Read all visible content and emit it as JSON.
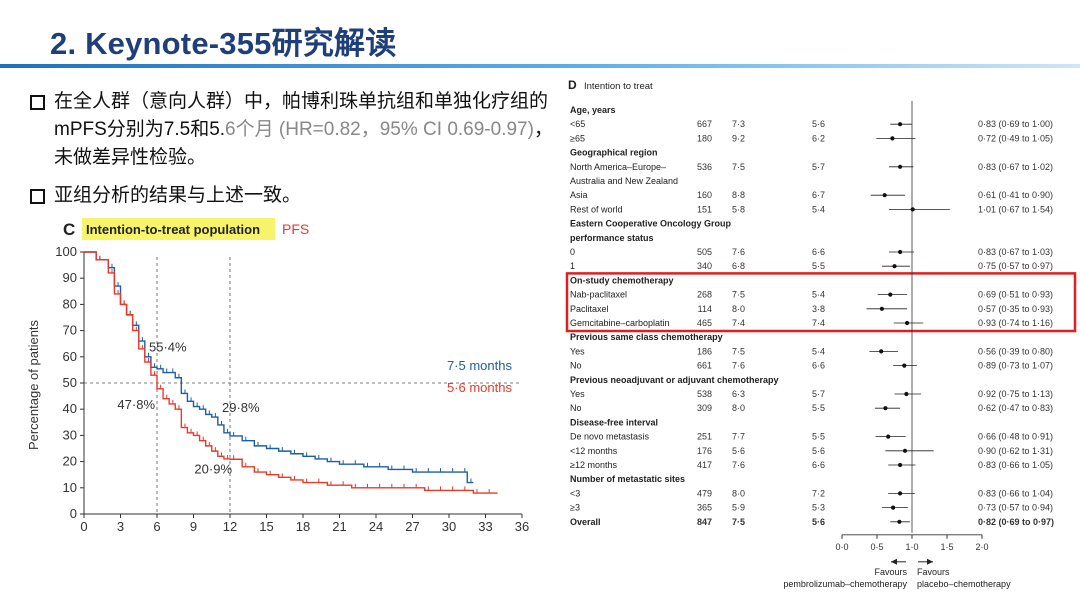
{
  "header": {
    "title": "2. Keynote-355研究解读"
  },
  "bullets": {
    "b1_black": "在全人群（意向人群）中，帕博利珠单抗组和单独化疗组的mPFS分别为7.5和5.",
    "b1_gray": "6个月 (HR=0.82，95% CI 0.69-0.97)",
    "b1_tail": "，未做差异性检验。",
    "b2": "亚组分析的结果与上述一致。"
  },
  "chart_data": [
    {
      "type": "line",
      "panel_letter": "C",
      "title": "Intention-to-treat population",
      "subtitle": "PFS",
      "xlabel": "",
      "ylabel": "Percentage of patients",
      "xlim": [
        0,
        36
      ],
      "ylim": [
        0,
        100
      ],
      "x_ticks": [
        "0",
        "3",
        "6",
        "9",
        "12",
        "15",
        "18",
        "21",
        "24",
        "27",
        "30",
        "33",
        "36"
      ],
      "y_ticks": [
        "0",
        "10",
        "20",
        "30",
        "40",
        "50",
        "60",
        "70",
        "80",
        "90",
        "100"
      ],
      "series": [
        {
          "name": "7·5 months",
          "color": "#1b5fa6",
          "x": [
            0,
            1,
            2,
            2.5,
            3,
            3.5,
            4,
            4.5,
            5,
            5.5,
            6,
            6.5,
            7,
            7.5,
            8,
            8.5,
            9,
            9.5,
            10,
            10.5,
            11,
            11.5,
            12,
            13,
            14,
            15,
            16,
            17,
            18,
            19,
            20,
            21,
            22,
            23,
            24,
            25,
            26,
            27,
            28,
            29,
            30,
            31,
            31.5,
            32
          ],
          "y": [
            100,
            97,
            94,
            87,
            80,
            76,
            72,
            66,
            60,
            56,
            55.4,
            54,
            54,
            52,
            46,
            43,
            41,
            40,
            38,
            37,
            34,
            31,
            29.8,
            28,
            26,
            25,
            24,
            23,
            22,
            21,
            20,
            19,
            19,
            18,
            18,
            17,
            17,
            16,
            16,
            16,
            16,
            16,
            12,
            12
          ]
        },
        {
          "name": "5·6 months",
          "color": "#e8392b",
          "x": [
            0,
            1,
            2,
            2.5,
            3,
            3.5,
            4,
            4.5,
            5,
            5.5,
            6,
            6.5,
            7,
            7.5,
            8,
            8.5,
            9,
            9.5,
            10,
            10.5,
            11,
            11.5,
            12,
            13,
            14,
            15,
            16,
            17,
            18,
            19,
            20,
            21,
            22,
            23,
            24,
            25,
            26,
            27,
            28,
            29,
            30,
            31,
            32,
            33,
            34
          ],
          "y": [
            100,
            97,
            92,
            84,
            80,
            76,
            70,
            63,
            58,
            53,
            47.8,
            44,
            42,
            40,
            33,
            31,
            30,
            28,
            26,
            24,
            22,
            21,
            20.9,
            18,
            16,
            15,
            14,
            13,
            12,
            12,
            11,
            11,
            10,
            10,
            10,
            10,
            10,
            10,
            9,
            9,
            9,
            9,
            8,
            8,
            8
          ]
        }
      ],
      "annotations": [
        "55·4%",
        "47·8%",
        "29·8%",
        "20·9%"
      ],
      "reference_line_y": 50,
      "reference_lines_x": [
        6,
        12
      ]
    },
    {
      "type": "forest",
      "panel_letter": "D",
      "title": "Intention to treat",
      "x_ticks": [
        "0·0",
        "0·5",
        "1·0",
        "1·5",
        "2·0"
      ],
      "xlim": [
        0,
        2
      ],
      "reference_x": 1.0,
      "favours_left": "Favours\npembrolizumab–chemotherapy",
      "favours_right": "Favours\nplacebo–chemotherapy",
      "highlight_color": "#e02020",
      "rows": [
        {
          "kind": "header",
          "label": "Age, years"
        },
        {
          "kind": "data",
          "label": "<65",
          "n": "667",
          "a": "7·3",
          "b": "5·6",
          "hr": 0.83,
          "lo": 0.69,
          "hi": 1.0,
          "ci": "0·83 (0·69 to 1·00)"
        },
        {
          "kind": "data",
          "label": "≥65",
          "n": "180",
          "a": "9·2",
          "b": "6·2",
          "hr": 0.72,
          "lo": 0.49,
          "hi": 1.05,
          "ci": "0·72 (0·49 to 1·05)"
        },
        {
          "kind": "header",
          "label": "Geographical region"
        },
        {
          "kind": "data",
          "label": "North America–Europe–",
          "n": "536",
          "a": "7·5",
          "b": "5·7",
          "hr": 0.83,
          "lo": 0.67,
          "hi": 1.02,
          "ci": "0·83 (0·67 to 1·02)"
        },
        {
          "kind": "text",
          "label": "Australia and New Zealand"
        },
        {
          "kind": "data",
          "label": "Asia",
          "n": "160",
          "a": "8·8",
          "b": "6·7",
          "hr": 0.61,
          "lo": 0.41,
          "hi": 0.9,
          "ci": "0·61 (0·41 to 0·90)"
        },
        {
          "kind": "data",
          "label": "Rest of world",
          "n": "151",
          "a": "5·8",
          "b": "5·4",
          "hr": 1.01,
          "lo": 0.67,
          "hi": 1.54,
          "ci": "1·01 (0·67 to 1·54)"
        },
        {
          "kind": "header",
          "label": "Eastern Cooperative Oncology Group"
        },
        {
          "kind": "header",
          "label": "performance status"
        },
        {
          "kind": "data",
          "label": "0",
          "n": "505",
          "a": "7·6",
          "b": "6·6",
          "hr": 0.83,
          "lo": 0.67,
          "hi": 1.03,
          "ci": "0·83 (0·67 to 1·03)"
        },
        {
          "kind": "data",
          "label": "1",
          "n": "340",
          "a": "6·8",
          "b": "5·5",
          "hr": 0.75,
          "lo": 0.57,
          "hi": 0.97,
          "ci": "0·75 (0·57 to 0·97)"
        },
        {
          "kind": "header",
          "label": "On-study chemotherapy"
        },
        {
          "kind": "data",
          "label": "Nab-paclitaxel",
          "n": "268",
          "a": "7·5",
          "b": "5·4",
          "hr": 0.69,
          "lo": 0.51,
          "hi": 0.93,
          "ci": "0·69 (0·51 to 0·93)"
        },
        {
          "kind": "data",
          "label": "Paclitaxel",
          "n": "114",
          "a": "8·0",
          "b": "3·8",
          "hr": 0.57,
          "lo": 0.35,
          "hi": 0.93,
          "ci": "0·57 (0·35 to 0·93)"
        },
        {
          "kind": "data",
          "label": "Gemcitabine–carboplatin",
          "n": "465",
          "a": "7·4",
          "b": "7·4",
          "hr": 0.93,
          "lo": 0.74,
          "hi": 1.16,
          "ci": "0·93 (0·74 to 1·16)"
        },
        {
          "kind": "header",
          "label": "Previous same class chemotherapy"
        },
        {
          "kind": "data",
          "label": "Yes",
          "n": "186",
          "a": "7·5",
          "b": "5·4",
          "hr": 0.56,
          "lo": 0.39,
          "hi": 0.8,
          "ci": "0·56 (0·39 to 0·80)"
        },
        {
          "kind": "data",
          "label": "No",
          "n": "661",
          "a": "7·6",
          "b": "6·6",
          "hr": 0.89,
          "lo": 0.73,
          "hi": 1.07,
          "ci": "0·89 (0·73 to 1·07)"
        },
        {
          "kind": "header",
          "label": "Previous neoadjuvant or adjuvant chemotherapy"
        },
        {
          "kind": "data",
          "label": "Yes",
          "n": "538",
          "a": "6·3",
          "b": "5·7",
          "hr": 0.92,
          "lo": 0.75,
          "hi": 1.13,
          "ci": "0·92 (0·75 to 1·13)"
        },
        {
          "kind": "data",
          "label": "No",
          "n": "309",
          "a": "8·0",
          "b": "5·5",
          "hr": 0.62,
          "lo": 0.47,
          "hi": 0.83,
          "ci": "0·62 (0·47 to 0·83)"
        },
        {
          "kind": "header",
          "label": "Disease-free interval"
        },
        {
          "kind": "data",
          "label": "De novo metastasis",
          "n": "251",
          "a": "7·7",
          "b": "5·5",
          "hr": 0.66,
          "lo": 0.48,
          "hi": 0.91,
          "ci": "0·66 (0·48 to 0·91)"
        },
        {
          "kind": "data",
          "label": "<12 months",
          "n": "176",
          "a": "5·6",
          "b": "5·6",
          "hr": 0.9,
          "lo": 0.62,
          "hi": 1.31,
          "ci": "0·90 (0·62 to 1·31)"
        },
        {
          "kind": "data",
          "label": "≥12 months",
          "n": "417",
          "a": "7·6",
          "b": "6·6",
          "hr": 0.83,
          "lo": 0.66,
          "hi": 1.05,
          "ci": "0·83 (0·66 to 1·05)"
        },
        {
          "kind": "header",
          "label": "Number of metastatic sites"
        },
        {
          "kind": "data",
          "label": "<3",
          "n": "479",
          "a": "8·0",
          "b": "7·2",
          "hr": 0.83,
          "lo": 0.66,
          "hi": 1.04,
          "ci": "0·83 (0·66 to 1·04)"
        },
        {
          "kind": "data",
          "label": "≥3",
          "n": "365",
          "a": "5·9",
          "b": "5·3",
          "hr": 0.73,
          "lo": 0.57,
          "hi": 0.94,
          "ci": "0·73 (0·57 to 0·94)"
        },
        {
          "kind": "overall",
          "label": "Overall",
          "n": "847",
          "a": "7·5",
          "b": "5·6",
          "hr": 0.82,
          "lo": 0.69,
          "hi": 0.97,
          "ci": "0·82 (0·69 to 0·97)"
        }
      ]
    }
  ]
}
